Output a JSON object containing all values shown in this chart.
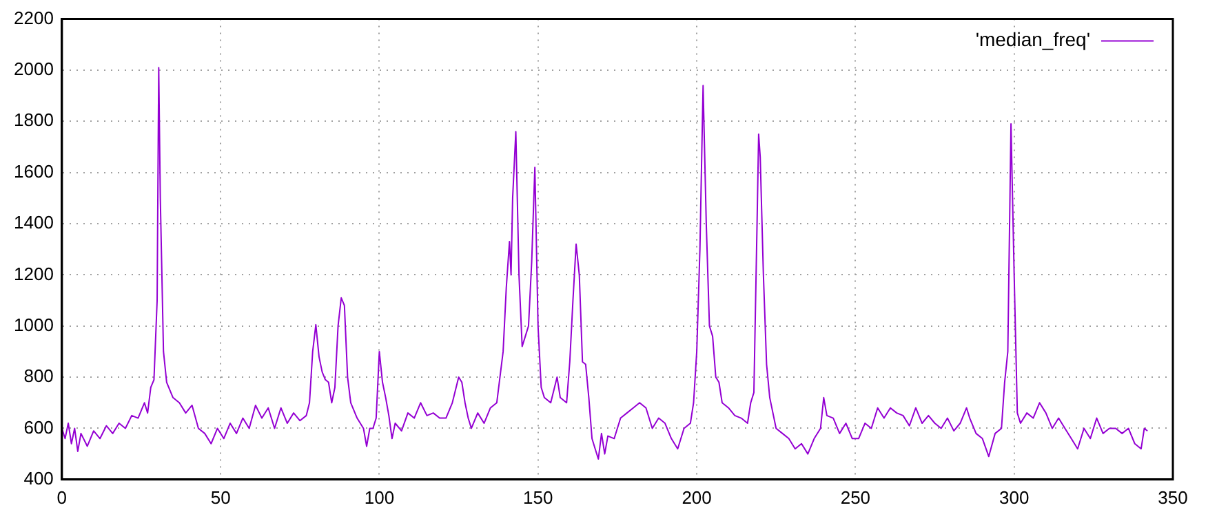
{
  "chart_data": {
    "type": "line",
    "x": [
      0,
      1,
      2,
      3,
      4,
      5,
      6,
      8,
      10,
      12,
      14,
      16,
      18,
      20,
      22,
      24,
      26,
      27,
      28,
      29,
      30,
      30.5,
      31,
      32,
      33,
      35,
      37,
      39,
      41,
      43,
      45,
      47,
      49,
      51,
      53,
      55,
      57,
      59,
      61,
      63,
      65,
      67,
      69,
      71,
      73,
      75,
      77,
      78,
      79,
      80,
      81,
      82,
      83,
      84,
      85,
      86,
      87,
      88,
      89,
      90,
      91,
      93,
      95,
      96,
      97,
      98,
      99,
      100,
      101,
      102,
      103,
      104,
      105,
      107,
      109,
      111,
      113,
      115,
      117,
      119,
      121,
      123,
      125,
      126,
      127,
      128,
      129,
      131,
      133,
      135,
      137,
      139,
      140,
      141,
      141.5,
      142,
      143,
      144,
      145,
      146,
      147,
      148,
      149,
      150,
      151,
      152,
      154,
      156,
      157,
      159,
      160,
      161,
      162,
      163,
      164,
      165,
      166,
      167,
      168,
      169,
      170,
      171,
      172,
      174,
      176,
      178,
      180,
      182,
      184,
      186,
      188,
      190,
      192,
      194,
      196,
      198,
      199,
      200,
      201,
      202,
      203,
      204,
      205,
      206,
      207,
      208,
      210,
      212,
      214,
      216,
      217,
      218,
      219,
      219.5,
      220,
      221,
      222,
      223,
      225,
      227,
      229,
      231,
      233,
      235,
      237,
      239,
      240,
      241,
      243,
      245,
      247,
      249,
      251,
      253,
      255,
      257,
      259,
      261,
      263,
      265,
      267,
      269,
      271,
      273,
      275,
      277,
      279,
      281,
      283,
      285,
      286,
      288,
      290,
      292,
      294,
      296,
      297,
      298,
      299,
      300,
      301,
      302,
      304,
      306,
      308,
      310,
      312,
      314,
      316,
      318,
      320,
      322,
      324,
      326,
      328,
      330,
      332,
      334,
      336,
      338,
      340,
      341,
      342
    ],
    "series": [
      {
        "name": "'median_freq'",
        "color": "#9400d3",
        "values": [
          600,
          560,
          620,
          540,
          600,
          510,
          580,
          530,
          590,
          560,
          610,
          580,
          620,
          600,
          650,
          640,
          700,
          660,
          760,
          790,
          1100,
          2010,
          1500,
          900,
          780,
          720,
          700,
          660,
          690,
          600,
          580,
          540,
          600,
          560,
          620,
          580,
          640,
          600,
          690,
          640,
          680,
          600,
          680,
          620,
          660,
          630,
          650,
          700,
          900,
          1005,
          880,
          820,
          790,
          780,
          700,
          760,
          1000,
          1110,
          1080,
          800,
          700,
          640,
          600,
          530,
          600,
          600,
          640,
          900,
          780,
          720,
          650,
          560,
          620,
          590,
          660,
          640,
          700,
          650,
          660,
          640,
          640,
          700,
          800,
          780,
          700,
          640,
          600,
          660,
          620,
          680,
          700,
          900,
          1150,
          1330,
          1200,
          1500,
          1760,
          1200,
          920,
          960,
          1000,
          1250,
          1620,
          1000,
          760,
          720,
          700,
          800,
          720,
          700,
          860,
          1100,
          1320,
          1200,
          860,
          850,
          720,
          560,
          520,
          480,
          580,
          500,
          570,
          560,
          640,
          660,
          680,
          700,
          680,
          600,
          640,
          620,
          560,
          520,
          600,
          620,
          700,
          900,
          1300,
          1940,
          1400,
          1000,
          960,
          800,
          780,
          700,
          680,
          650,
          640,
          620,
          700,
          740,
          1400,
          1750,
          1660,
          1200,
          850,
          720,
          600,
          580,
          560,
          520,
          540,
          500,
          560,
          600,
          720,
          650,
          640,
          580,
          620,
          560,
          560,
          620,
          600,
          680,
          640,
          680,
          660,
          650,
          610,
          680,
          620,
          650,
          620,
          600,
          640,
          590,
          620,
          680,
          640,
          580,
          560,
          490,
          580,
          600,
          780,
          900,
          1790,
          1200,
          660,
          620,
          660,
          640,
          700,
          660,
          600,
          640,
          600,
          560,
          520,
          600,
          560,
          640,
          580,
          600,
          600,
          580,
          600,
          540,
          520,
          600,
          590
        ]
      }
    ],
    "xlim": [
      0,
      350
    ],
    "xticks": [
      0,
      50,
      100,
      150,
      200,
      250,
      300,
      350
    ],
    "ylim": [
      400,
      2200
    ],
    "yticks": [
      400,
      600,
      800,
      1000,
      1200,
      1400,
      1600,
      1800,
      2000,
      2200
    ],
    "grid": true,
    "legend": "top right",
    "line_style": "solid",
    "marker": "none"
  }
}
